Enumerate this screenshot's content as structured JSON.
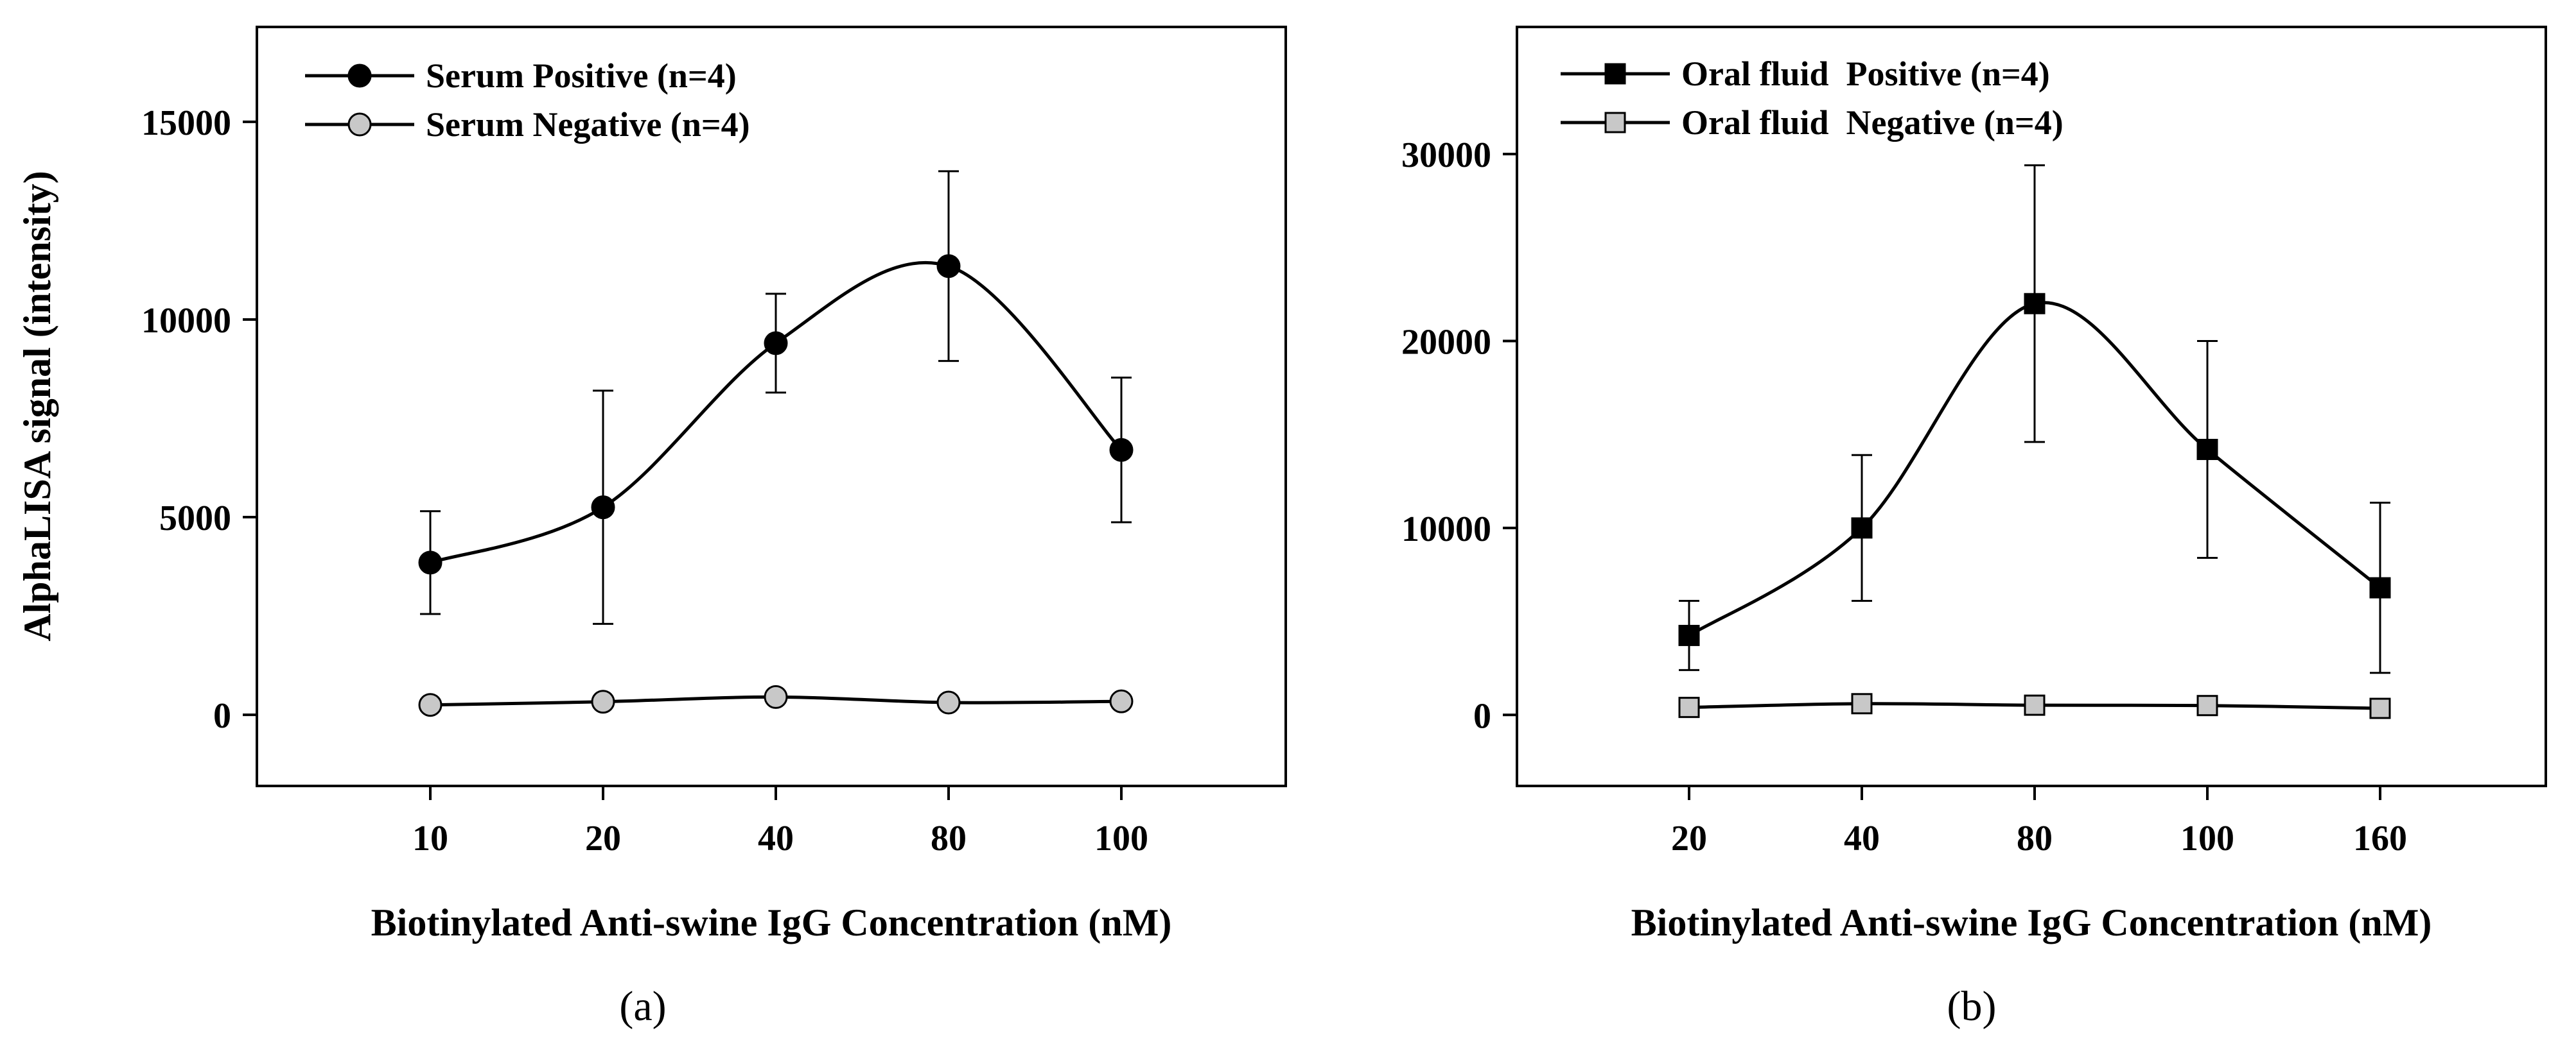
{
  "chart_data": [
    {
      "type": "line",
      "panel_label": "a",
      "title": "",
      "xlabel": "Biotinylated Anti-swine IgG Concentration (nM)",
      "ylabel": "AlphaLISA signal (intensity)",
      "categories": [
        "10",
        "20",
        "40",
        "80",
        "100"
      ],
      "ylim": [
        -1800,
        17400
      ],
      "yticks": [
        0,
        5000,
        10000,
        15000
      ],
      "legend_position": "top-left",
      "series": [
        {
          "name": "Serum Positive (n=4)",
          "marker": "circle",
          "fill": "#000000",
          "values": [
            3850,
            5250,
            9400,
            11350,
            6700
          ],
          "errors": [
            1300,
            2950,
            1250,
            2400,
            1830
          ]
        },
        {
          "name": "Serum Negative (n=4)",
          "marker": "circle",
          "fill": "#c8c8c8",
          "values": [
            250,
            330,
            450,
            310,
            340
          ],
          "errors": [
            0,
            0,
            0,
            0,
            0
          ]
        }
      ]
    },
    {
      "type": "line",
      "panel_label": "b",
      "title": "",
      "xlabel": "Biotinylated Anti-swine IgG Concentration (nM)",
      "ylabel": "",
      "categories": [
        "20",
        "40",
        "80",
        "100",
        "160"
      ],
      "ylim": [
        -3800,
        36800
      ],
      "yticks": [
        0,
        10000,
        20000,
        30000
      ],
      "legend_position": "top-left",
      "series": [
        {
          "name": "Oral fluid  Positive (n=4)",
          "marker": "square",
          "fill": "#000000",
          "values": [
            4250,
            10000,
            22000,
            14200,
            6800
          ],
          "errors": [
            1850,
            3900,
            7400,
            5800,
            4550
          ]
        },
        {
          "name": "Oral fluid  Negative (n=4)",
          "marker": "square",
          "fill": "#c8c8c8",
          "values": [
            400,
            600,
            520,
            500,
            350
          ],
          "errors": [
            0,
            0,
            0,
            0,
            0
          ]
        }
      ]
    }
  ]
}
